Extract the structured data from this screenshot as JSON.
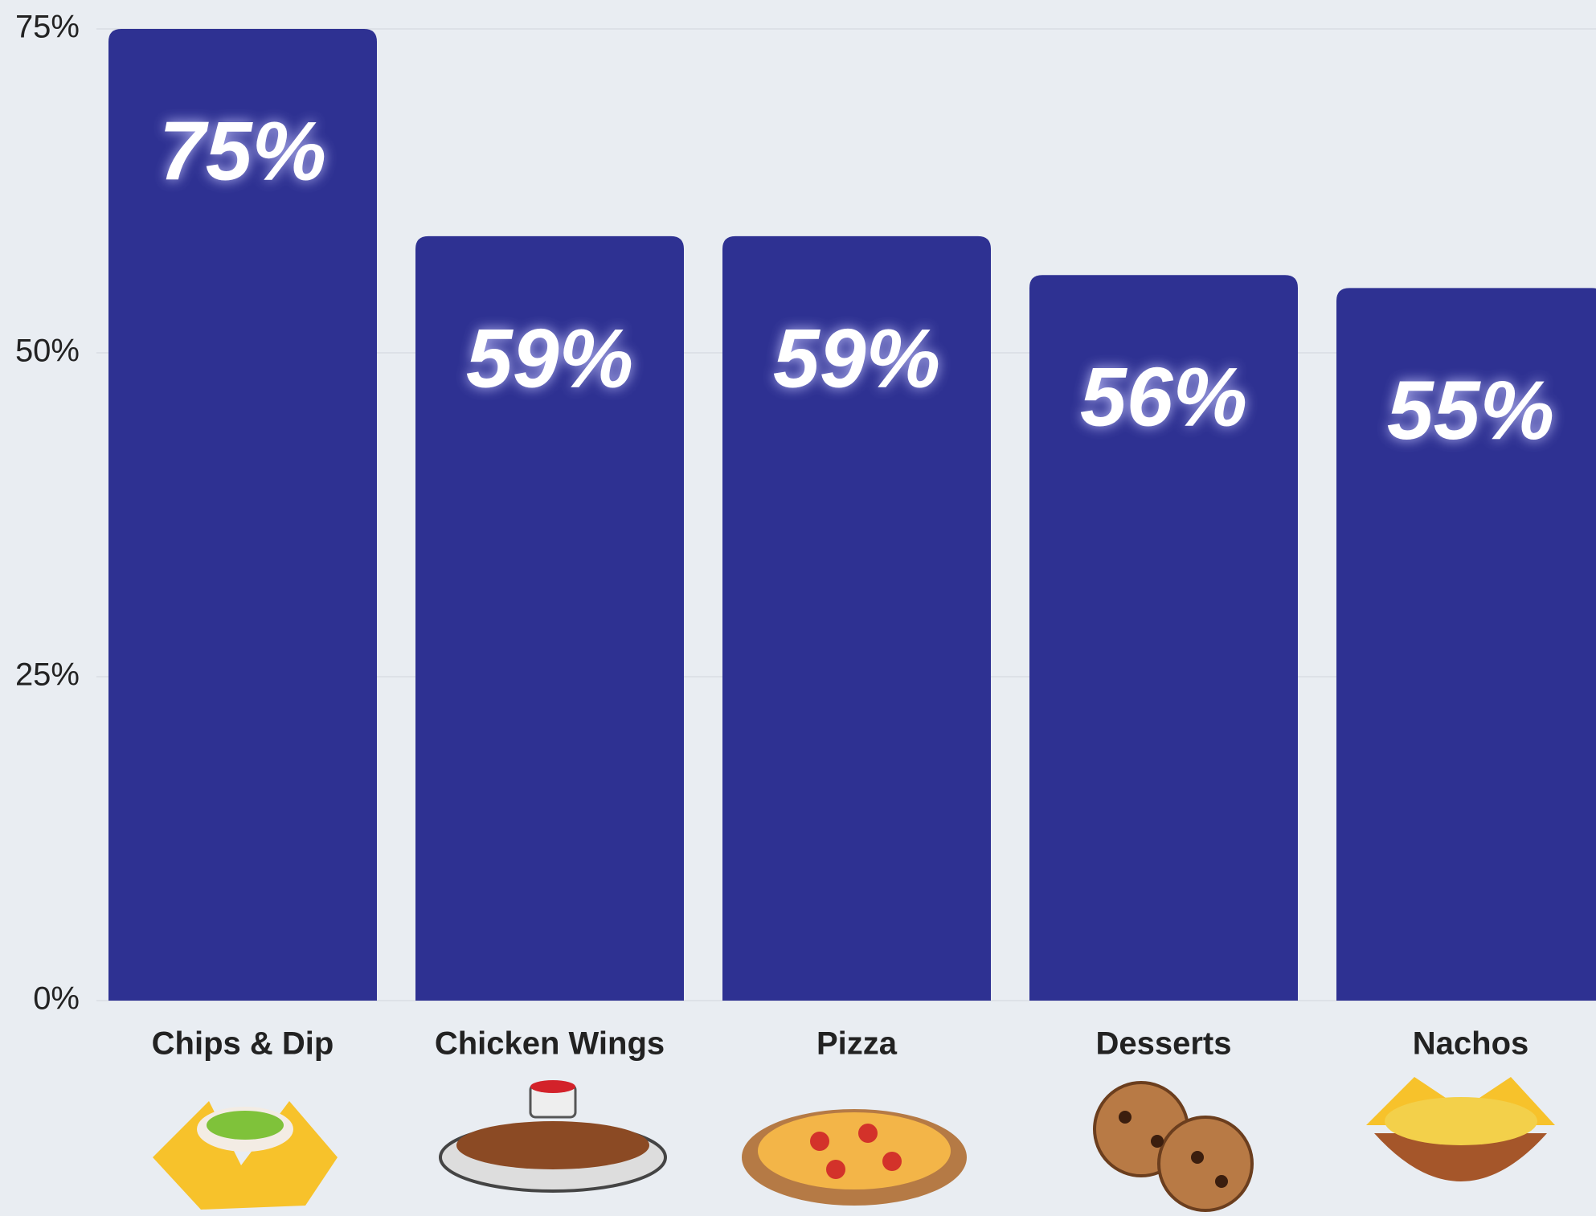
{
  "chart_data": {
    "type": "bar",
    "categories": [
      "Chips & Dip",
      "Chicken Wings",
      "Pizza",
      "Desserts",
      "Nachos"
    ],
    "values": [
      75,
      59,
      59,
      56,
      55
    ],
    "value_labels": [
      "75%",
      "59%",
      "59%",
      "56%",
      "55%"
    ],
    "color": "#2e3192",
    "ylim": [
      0,
      75
    ],
    "yticks": [
      {
        "value": 0,
        "label": "0%"
      },
      {
        "value": 25,
        "label": "25%"
      },
      {
        "value": 50,
        "label": "50%"
      },
      {
        "value": 75,
        "label": "75%"
      }
    ],
    "grid": true
  }
}
